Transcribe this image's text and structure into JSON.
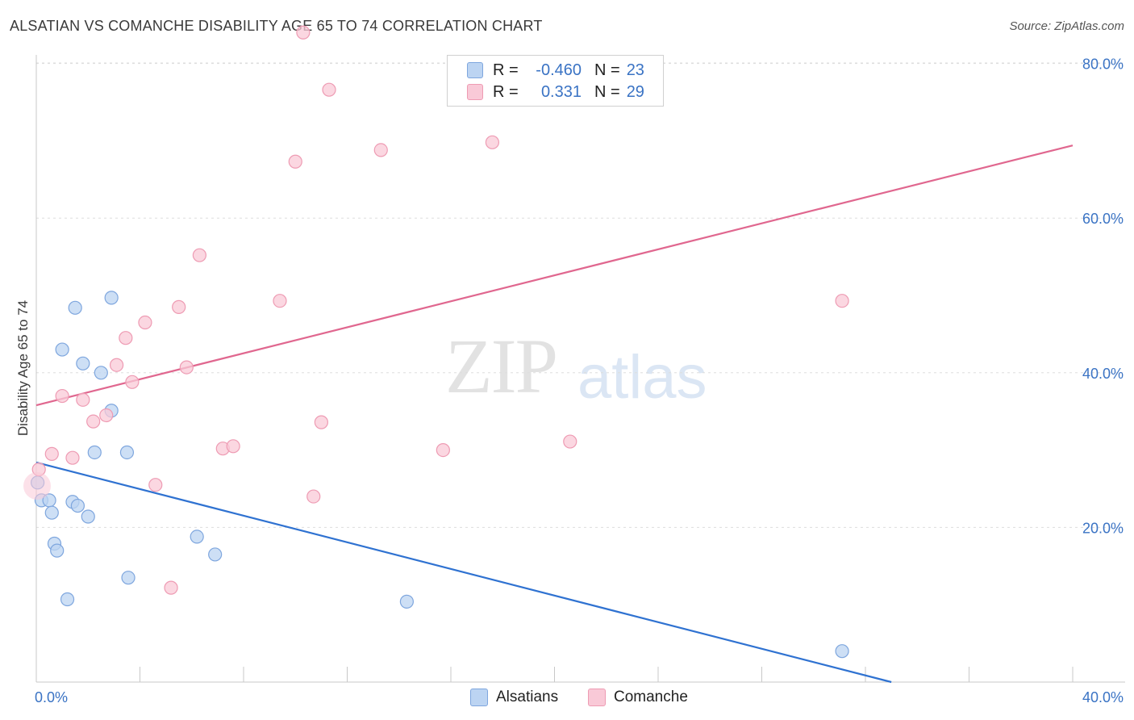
{
  "title": "ALSATIAN VS COMANCHE DISABILITY AGE 65 TO 74 CORRELATION CHART",
  "source": "Source: ZipAtlas.com",
  "watermark": {
    "zip": "ZIP",
    "atlas": "atlas"
  },
  "legend": {
    "rows": [
      {
        "r_label": "R =",
        "r_value": "-0.460",
        "n_label": "N =",
        "n_value": "23"
      },
      {
        "r_label": "R =",
        "r_value": "0.331",
        "n_label": "N =",
        "n_value": "29"
      }
    ]
  },
  "bottom_legend": {
    "series1": "Alsatians",
    "series2": "Comanche"
  },
  "colors": {
    "alsatians_fill": "#bcd4f2",
    "alsatians_stroke": "#7ea6de",
    "alsatians_line": "#2f72d1",
    "comanche_fill": "#f9c9d7",
    "comanche_stroke": "#ee9bb3",
    "comanche_line": "#e0678f"
  },
  "chart_data": {
    "type": "scatter",
    "title": "ALSATIAN VS COMANCHE DISABILITY AGE 65 TO 74 CORRELATION CHART",
    "xlabel": "",
    "ylabel": "Disability Age 65 to 74",
    "xlim": [
      0,
      40
    ],
    "ylim": [
      0,
      80
    ],
    "x_tick_labels": [
      "0.0%",
      "40.0%"
    ],
    "y_ticks": [
      20,
      40,
      60,
      80
    ],
    "y_tick_labels": [
      "20.0%",
      "40.0%",
      "60.0%",
      "80.0%"
    ],
    "series": [
      {
        "name": "Alsatians",
        "points": [
          [
            0.05,
            25.8
          ],
          [
            0.2,
            23.5
          ],
          [
            0.5,
            23.5
          ],
          [
            0.6,
            21.9
          ],
          [
            0.7,
            17.9
          ],
          [
            0.8,
            17.0
          ],
          [
            1.0,
            43.0
          ],
          [
            1.2,
            10.7
          ],
          [
            1.4,
            23.3
          ],
          [
            1.5,
            48.4
          ],
          [
            1.6,
            22.8
          ],
          [
            1.8,
            41.2
          ],
          [
            2.0,
            21.4
          ],
          [
            2.25,
            29.7
          ],
          [
            2.5,
            40.0
          ],
          [
            2.9,
            49.7
          ],
          [
            2.9,
            35.1
          ],
          [
            3.5,
            29.7
          ],
          [
            3.55,
            13.5
          ],
          [
            6.2,
            18.8
          ],
          [
            6.9,
            16.5
          ],
          [
            14.3,
            10.4
          ],
          [
            31.1,
            4.0
          ]
        ],
        "trend": {
          "x": [
            0,
            33.0
          ],
          "y": [
            28.4,
            0
          ]
        }
      },
      {
        "name": "Comanche",
        "points": [
          [
            0.1,
            27.5
          ],
          [
            0.6,
            29.5
          ],
          [
            1.0,
            37.0
          ],
          [
            1.4,
            29.0
          ],
          [
            1.8,
            36.5
          ],
          [
            2.2,
            33.7
          ],
          [
            2.7,
            34.5
          ],
          [
            3.1,
            41.0
          ],
          [
            3.45,
            44.5
          ],
          [
            3.7,
            38.8
          ],
          [
            4.2,
            46.5
          ],
          [
            4.6,
            25.5
          ],
          [
            5.2,
            12.2
          ],
          [
            5.5,
            48.5
          ],
          [
            5.8,
            40.7
          ],
          [
            6.3,
            55.2
          ],
          [
            7.2,
            30.2
          ],
          [
            7.6,
            30.5
          ],
          [
            9.4,
            49.3
          ],
          [
            10.0,
            67.3
          ],
          [
            10.3,
            84.0
          ],
          [
            10.7,
            24.0
          ],
          [
            11.0,
            33.6
          ],
          [
            11.3,
            76.6
          ],
          [
            13.3,
            68.8
          ],
          [
            15.7,
            30.0
          ],
          [
            17.6,
            69.8
          ],
          [
            20.6,
            31.1
          ],
          [
            31.1,
            49.3
          ]
        ],
        "trend": {
          "x": [
            0,
            40
          ],
          "y": [
            35.8,
            69.4
          ]
        }
      }
    ]
  }
}
